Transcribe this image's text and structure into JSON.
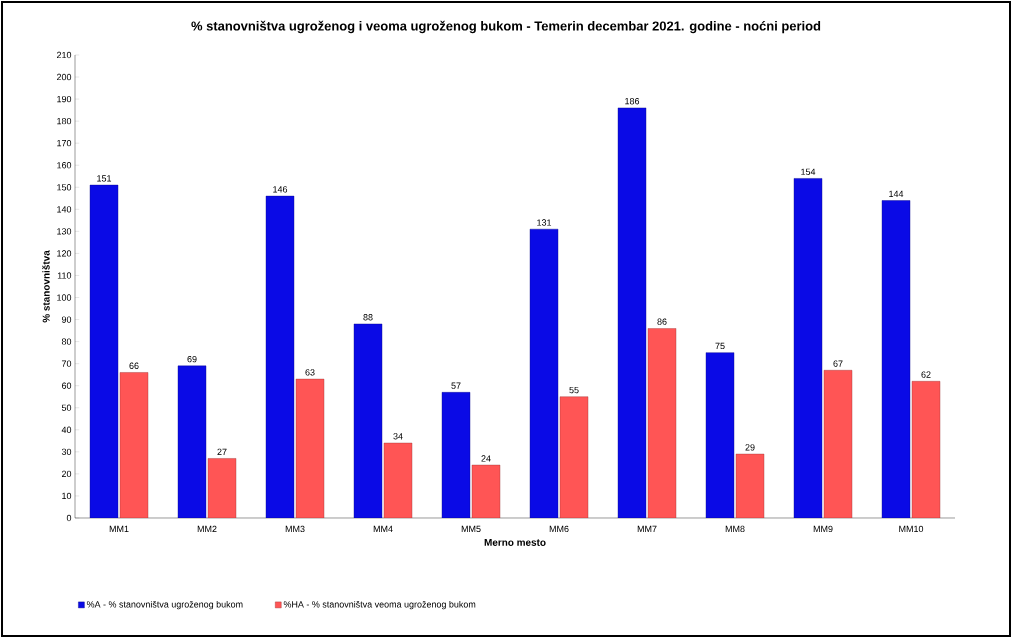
{
  "chart_data": {
    "type": "bar",
    "title": "% stanovništva ugroženog i veoma ugroženog bukom - Temerin decembar 2021. godine - noćni period",
    "xlabel": "Merno mesto",
    "ylabel": "% stanovništva",
    "categories": [
      "MM1",
      "MM2",
      "MM3",
      "MM4",
      "MM5",
      "MM6",
      "MM7",
      "MM8",
      "MM9",
      "MM10"
    ],
    "series": [
      {
        "name": "%A - % stanovništva ugroženog bukom",
        "color": "#0a0ae6",
        "values": [
          151,
          69,
          146,
          88,
          57,
          131,
          186,
          75,
          154,
          144
        ]
      },
      {
        "name": "%HA - % stanovništva veoma ugroženog bukom",
        "color": "#ff5555",
        "values": [
          66,
          27,
          63,
          34,
          24,
          55,
          86,
          29,
          67,
          62
        ]
      }
    ],
    "ylim": [
      0,
      210
    ],
    "yticks": [
      0,
      10,
      20,
      30,
      40,
      50,
      60,
      70,
      80,
      90,
      100,
      110,
      120,
      130,
      140,
      150,
      160,
      170,
      180,
      190,
      200,
      210
    ],
    "data_labels": true,
    "grid": false,
    "legend": "bottom"
  }
}
